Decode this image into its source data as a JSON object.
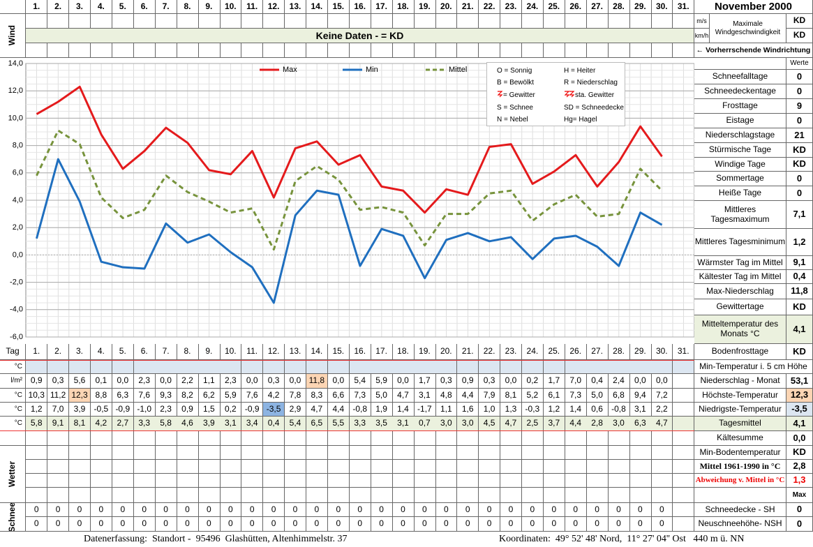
{
  "header": {
    "title": "November 2000",
    "day31": "31.",
    "wind_label": "Wind",
    "wind_units": [
      "m/s",
      "km/h"
    ],
    "wind_title": "Maximale Windgeschwindigkeit",
    "wind_values": [
      "KD",
      "KD"
    ],
    "no_data": "Keine Daten -  = KD",
    "wind_direction": "← Vorherrschende Windrichtung",
    "values_header": "Werte"
  },
  "chart_data": {
    "type": "line",
    "legend": "top",
    "grid": true,
    "categories": [
      "1.",
      "2.",
      "3.",
      "4.",
      "5.",
      "6.",
      "7.",
      "8.",
      "9.",
      "10.",
      "11.",
      "12.",
      "13.",
      "14.",
      "15.",
      "16.",
      "17.",
      "18.",
      "19.",
      "20.",
      "21.",
      "22.",
      "23.",
      "24.",
      "25.",
      "26.",
      "27.",
      "28.",
      "29.",
      "30."
    ],
    "ylim": [
      -6,
      14
    ],
    "yticks": [
      {
        "value": 14,
        "label": "14,0"
      },
      {
        "value": 12,
        "label": "12,0"
      },
      {
        "value": 10,
        "label": "10,0"
      },
      {
        "value": 8,
        "label": "8,0"
      },
      {
        "value": 6,
        "label": "6,0"
      },
      {
        "value": 4,
        "label": "4,0"
      },
      {
        "value": 2,
        "label": "2,0"
      },
      {
        "value": 0,
        "label": "0,0"
      },
      {
        "value": -2,
        "label": "-2,0"
      },
      {
        "value": -4,
        "label": "-4,0"
      },
      {
        "value": -6,
        "label": "-6,0"
      }
    ],
    "series": [
      {
        "name": "Max",
        "color": "#e41a1c",
        "style": "solid",
        "values": [
          10.3,
          11.2,
          12.3,
          8.8,
          6.3,
          7.6,
          9.3,
          8.2,
          6.2,
          5.9,
          7.6,
          4.2,
          7.8,
          8.3,
          6.6,
          7.3,
          5.0,
          4.7,
          3.1,
          4.8,
          4.4,
          7.9,
          8.1,
          5.2,
          6.1,
          7.3,
          5.0,
          6.8,
          9.4,
          7.2
        ],
        "value_labels": [
          "10,3",
          "11,2",
          "12,3",
          "8,8",
          "6,3",
          "7,6",
          "9,3",
          "8,2",
          "6,2",
          "5,9",
          "7,6",
          "4,2",
          "7,8",
          "8,3",
          "6,6",
          "7,3",
          "5,0",
          "4,7",
          "3,1",
          "4,8",
          "4,4",
          "7,9",
          "8,1",
          "5,2",
          "6,1",
          "7,3",
          "5,0",
          "6,8",
          "9,4",
          "7,2"
        ]
      },
      {
        "name": "Min",
        "color": "#1f6fbf",
        "style": "solid",
        "values": [
          1.2,
          7.0,
          3.9,
          -0.5,
          -0.9,
          -1.0,
          2.3,
          0.9,
          1.5,
          0.2,
          -0.9,
          -3.5,
          2.9,
          4.7,
          4.4,
          -0.8,
          1.9,
          1.4,
          -1.7,
          1.1,
          1.6,
          1.0,
          1.3,
          -0.3,
          1.2,
          1.4,
          0.6,
          -0.8,
          3.1,
          2.2
        ],
        "value_labels": [
          "1,2",
          "7,0",
          "3,9",
          "-0,5",
          "-0,9",
          "-1,0",
          "2,3",
          "0,9",
          "1,5",
          "0,2",
          "-0,9",
          "-3,5",
          "2,9",
          "4,7",
          "4,4",
          "-0,8",
          "1,9",
          "1,4",
          "-1,7",
          "1,1",
          "1,6",
          "1,0",
          "1,3",
          "-0,3",
          "1,2",
          "1,4",
          "0,6",
          "-0,8",
          "3,1",
          "2,2"
        ]
      },
      {
        "name": "Mittel",
        "color": "#77933c",
        "style": "dashed",
        "values": [
          5.8,
          9.1,
          8.1,
          4.2,
          2.7,
          3.3,
          5.8,
          4.6,
          3.9,
          3.1,
          3.4,
          0.4,
          5.4,
          6.5,
          5.5,
          3.3,
          3.5,
          3.1,
          0.7,
          3.0,
          3.0,
          4.5,
          4.7,
          2.5,
          3.7,
          4.4,
          2.8,
          3.0,
          6.3,
          4.7
        ],
        "value_labels": [
          "5,8",
          "9,1",
          "8,1",
          "4,2",
          "2,7",
          "3,3",
          "5,8",
          "4,6",
          "3,9",
          "3,1",
          "3,4",
          "0,4",
          "5,4",
          "6,5",
          "5,5",
          "3,3",
          "3,5",
          "3,1",
          "0,7",
          "3,0",
          "3,0",
          "4,5",
          "4,7",
          "2,5",
          "3,7",
          "4,4",
          "2,8",
          "3,0",
          "6,3",
          "4,7"
        ]
      }
    ]
  },
  "weather_legend": [
    "O = Sonnig",
    "H = Heiter",
    "B = Bewölkt",
    "R = Niederschlag",
    "= Gewitter",
    "sta. Gewitter",
    "S = Schnee",
    "SD = Schneedecke",
    "N = Nebel",
    "Hg= Hagel"
  ],
  "stats": [
    {
      "label": "Schneefalltage",
      "value": 0
    },
    {
      "label": "Schneedeckentage",
      "value": 0
    },
    {
      "label": "Frosttage",
      "value": 9
    },
    {
      "label": "Eistage",
      "value": 0
    },
    {
      "label": "Niederschlagstage",
      "value": 21
    },
    {
      "label": "Stürmische Tage",
      "value": "KD"
    },
    {
      "label": "Windige Tage",
      "value": "KD"
    },
    {
      "label": "Sommertage",
      "value": 0
    },
    {
      "label": "Heiße Tage",
      "value": 0
    },
    {
      "label": "Mittleres Tagesmaximum",
      "value": "7,1"
    },
    {
      "label": "Mittleres Tagesminimum",
      "value": "1,2"
    },
    {
      "label": "Wärmster Tag im Mittel",
      "value": "9,1"
    },
    {
      "label": "Kältester Tag im Mittel",
      "value": "0,4"
    },
    {
      "label": "Max-Niederschlag",
      "value": "11,8"
    },
    {
      "label": "Gewittertage",
      "value": "KD"
    },
    {
      "label": "Mitteltemperatur des Monats °C",
      "value": "4,1"
    },
    {
      "label": "Bodenfrosttage",
      "value": "KD"
    }
  ],
  "table": {
    "tag_label": "Tag",
    "row_units": [
      "°C",
      "l/m²",
      "°C",
      "°C",
      "°C"
    ],
    "precipitation": [
      "0,9",
      "0,3",
      "5,6",
      "0,1",
      "0,0",
      "2,3",
      "0,0",
      "2,2",
      "1,1",
      "2,3",
      "0,0",
      "0,3",
      "0,0",
      "11,8",
      "0,0",
      "5,4",
      "5,9",
      "0,0",
      "1,7",
      "0,3",
      "0,9",
      "0,3",
      "0,0",
      "0,2",
      "1,7",
      "7,0",
      "0,4",
      "2,4",
      "0,0",
      "0,0"
    ],
    "wetter_label": "Wetter",
    "schnee_label": "Schnee",
    "snow_depth": [
      0,
      0,
      0,
      0,
      0,
      0,
      0,
      0,
      0,
      0,
      0,
      0,
      0,
      0,
      0,
      0,
      0,
      0,
      0,
      0,
      0,
      0,
      0,
      0,
      0,
      0,
      0,
      0,
      0,
      0
    ],
    "new_snow": [
      0,
      0,
      0,
      0,
      0,
      0,
      0,
      0,
      0,
      0,
      0,
      0,
      0,
      0,
      0,
      0,
      0,
      0,
      0,
      0,
      0,
      0,
      0,
      0,
      0,
      0,
      0,
      0,
      0,
      0
    ]
  },
  "summary": [
    {
      "label": "Min-Temperatur i. 5 cm Höhe"
    },
    {
      "label": "Niederschlag - Monat",
      "value": "53,1"
    },
    {
      "label": "Höchste-Temperatur",
      "value": "12,3"
    },
    {
      "label": "Niedrigste-Temperatur",
      "value": "-3,5"
    },
    {
      "label": "Tagesmittel",
      "value": "4,1"
    },
    {
      "label": "Kältesumme",
      "value": "0,0"
    },
    {
      "label": "Min-Bodentemperatur",
      "value": "KD"
    },
    {
      "label": "Mittel 1961-1990 in °C",
      "value": "2,8"
    },
    {
      "label": "Abweichung v. Mittel in °C",
      "value": "1,3"
    },
    {
      "value": "Max"
    },
    {
      "label": "Schneedecke -  SH",
      "value": 0
    },
    {
      "label": "Neuschneehöhe- NSH",
      "value": 0
    }
  ],
  "footer": {
    "left": "Datenerfassung:  Standort -  95496  Glashütten, Altenhimmelstr. 37",
    "right": "Koordinaten:  49° 52' 48' Nord,  11° 27' 04'' Ost   440 m ü. NN"
  }
}
